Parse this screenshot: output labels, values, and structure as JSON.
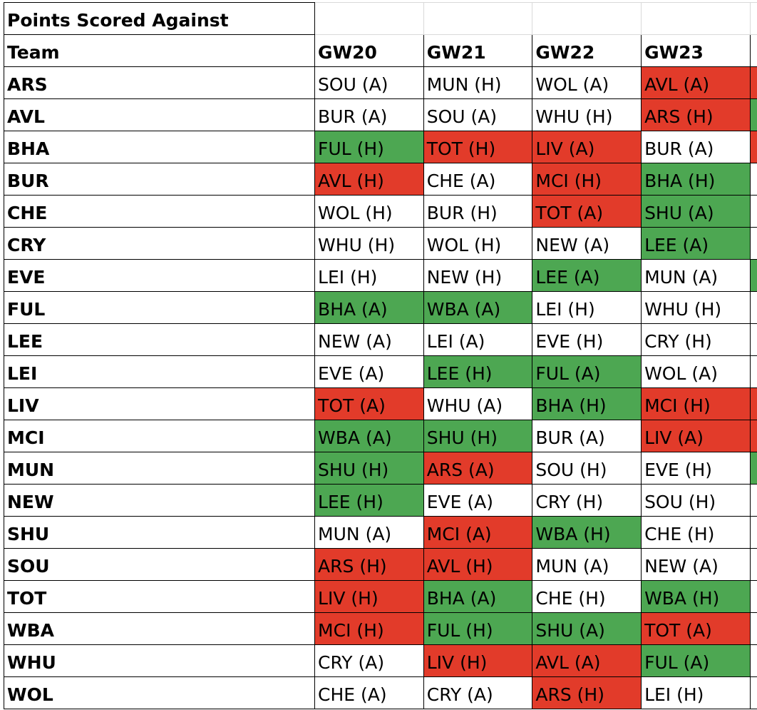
{
  "table": {
    "title": "Points Scored Against",
    "header_label": "Team",
    "gameweeks": [
      "GW20",
      "GW21",
      "GW22",
      "GW23"
    ],
    "colors": {
      "good": "#4da752",
      "bad": "#e23b2a",
      "neutral": "#ffffff"
    },
    "rows": [
      {
        "team": "ARS",
        "cells": [
          {
            "text": "SOU (A)",
            "status": "neutral"
          },
          {
            "text": "MUN (H)",
            "status": "neutral"
          },
          {
            "text": "WOL (A)",
            "status": "neutral"
          },
          {
            "text": "AVL (A)",
            "status": "bad"
          }
        ],
        "next": "bad"
      },
      {
        "team": "AVL",
        "cells": [
          {
            "text": "BUR (A)",
            "status": "neutral"
          },
          {
            "text": "SOU (A)",
            "status": "neutral"
          },
          {
            "text": "WHU (H)",
            "status": "neutral"
          },
          {
            "text": "ARS (H)",
            "status": "bad"
          }
        ],
        "next": "good"
      },
      {
        "team": "BHA",
        "cells": [
          {
            "text": "FUL (H)",
            "status": "good"
          },
          {
            "text": "TOT (H)",
            "status": "bad"
          },
          {
            "text": "LIV (A)",
            "status": "bad"
          },
          {
            "text": "BUR (A)",
            "status": "neutral"
          }
        ],
        "next": "bad"
      },
      {
        "team": "BUR",
        "cells": [
          {
            "text": "AVL (H)",
            "status": "bad"
          },
          {
            "text": "CHE (A)",
            "status": "neutral"
          },
          {
            "text": "MCI (H)",
            "status": "bad"
          },
          {
            "text": "BHA (H)",
            "status": "good"
          }
        ],
        "next": "neutral"
      },
      {
        "team": "CHE",
        "cells": [
          {
            "text": "WOL (H)",
            "status": "neutral"
          },
          {
            "text": "BUR (H)",
            "status": "neutral"
          },
          {
            "text": "TOT (A)",
            "status": "bad"
          },
          {
            "text": "SHU (A)",
            "status": "good"
          }
        ],
        "next": "neutral"
      },
      {
        "team": "CRY",
        "cells": [
          {
            "text": "WHU (H)",
            "status": "neutral"
          },
          {
            "text": "WOL (H)",
            "status": "neutral"
          },
          {
            "text": "NEW (A)",
            "status": "neutral"
          },
          {
            "text": "LEE (A)",
            "status": "good"
          }
        ],
        "next": "neutral"
      },
      {
        "team": "EVE",
        "cells": [
          {
            "text": "LEI (H)",
            "status": "neutral"
          },
          {
            "text": "NEW (H)",
            "status": "neutral"
          },
          {
            "text": "LEE (A)",
            "status": "good"
          },
          {
            "text": "MUN (A)",
            "status": "neutral"
          }
        ],
        "next": "good"
      },
      {
        "team": "FUL",
        "cells": [
          {
            "text": "BHA (A)",
            "status": "good"
          },
          {
            "text": "WBA (A)",
            "status": "good"
          },
          {
            "text": "LEI (H)",
            "status": "neutral"
          },
          {
            "text": "WHU (H)",
            "status": "neutral"
          }
        ],
        "next": "neutral"
      },
      {
        "team": "LEE",
        "cells": [
          {
            "text": "NEW (A)",
            "status": "neutral"
          },
          {
            "text": "LEI (A)",
            "status": "neutral"
          },
          {
            "text": "EVE (H)",
            "status": "neutral"
          },
          {
            "text": "CRY (H)",
            "status": "neutral"
          }
        ],
        "next": "neutral"
      },
      {
        "team": "LEI",
        "cells": [
          {
            "text": "EVE (A)",
            "status": "neutral"
          },
          {
            "text": "LEE (H)",
            "status": "good"
          },
          {
            "text": "FUL (A)",
            "status": "good"
          },
          {
            "text": "WOL (A)",
            "status": "neutral"
          }
        ],
        "next": "neutral"
      },
      {
        "team": "LIV",
        "cells": [
          {
            "text": "TOT (A)",
            "status": "bad"
          },
          {
            "text": "WHU (A)",
            "status": "neutral"
          },
          {
            "text": "BHA (H)",
            "status": "good"
          },
          {
            "text": "MCI (H)",
            "status": "bad"
          }
        ],
        "next": "bad"
      },
      {
        "team": "MCI",
        "cells": [
          {
            "text": "WBA (A)",
            "status": "good"
          },
          {
            "text": "SHU (H)",
            "status": "good"
          },
          {
            "text": "BUR (A)",
            "status": "neutral"
          },
          {
            "text": "LIV (A)",
            "status": "bad"
          }
        ],
        "next": "bad"
      },
      {
        "team": "MUN",
        "cells": [
          {
            "text": "SHU (H)",
            "status": "good"
          },
          {
            "text": "ARS (A)",
            "status": "bad"
          },
          {
            "text": "SOU (H)",
            "status": "neutral"
          },
          {
            "text": "EVE (H)",
            "status": "neutral"
          }
        ],
        "next": "good"
      },
      {
        "team": "NEW",
        "cells": [
          {
            "text": "LEE (H)",
            "status": "good"
          },
          {
            "text": "EVE (A)",
            "status": "neutral"
          },
          {
            "text": "CRY (H)",
            "status": "neutral"
          },
          {
            "text": "SOU (H)",
            "status": "neutral"
          }
        ],
        "next": "neutral"
      },
      {
        "team": "SHU",
        "cells": [
          {
            "text": "MUN (A)",
            "status": "neutral"
          },
          {
            "text": "MCI (A)",
            "status": "bad"
          },
          {
            "text": "WBA (H)",
            "status": "good"
          },
          {
            "text": "CHE (H)",
            "status": "neutral"
          }
        ],
        "next": "neutral"
      },
      {
        "team": "SOU",
        "cells": [
          {
            "text": "ARS (H)",
            "status": "bad"
          },
          {
            "text": "AVL (H)",
            "status": "bad"
          },
          {
            "text": "MUN (A)",
            "status": "neutral"
          },
          {
            "text": "NEW (A)",
            "status": "neutral"
          }
        ],
        "next": "neutral"
      },
      {
        "team": "TOT",
        "cells": [
          {
            "text": "LIV (H)",
            "status": "bad"
          },
          {
            "text": "BHA (A)",
            "status": "good"
          },
          {
            "text": "CHE (H)",
            "status": "neutral"
          },
          {
            "text": "WBA (H)",
            "status": "good"
          }
        ],
        "next": "neutral"
      },
      {
        "team": "WBA",
        "cells": [
          {
            "text": "MCI (H)",
            "status": "bad"
          },
          {
            "text": "FUL (H)",
            "status": "good"
          },
          {
            "text": "SHU (A)",
            "status": "good"
          },
          {
            "text": "TOT (A)",
            "status": "bad"
          }
        ],
        "next": "neutral"
      },
      {
        "team": "WHU",
        "cells": [
          {
            "text": "CRY (A)",
            "status": "neutral"
          },
          {
            "text": "LIV (H)",
            "status": "bad"
          },
          {
            "text": "AVL (A)",
            "status": "bad"
          },
          {
            "text": "FUL (A)",
            "status": "good"
          }
        ],
        "next": "neutral"
      },
      {
        "team": "WOL",
        "cells": [
          {
            "text": "CHE (A)",
            "status": "neutral"
          },
          {
            "text": "CRY (A)",
            "status": "neutral"
          },
          {
            "text": "ARS (H)",
            "status": "bad"
          },
          {
            "text": "LEI (H)",
            "status": "neutral"
          }
        ],
        "next": "neutral"
      }
    ]
  }
}
